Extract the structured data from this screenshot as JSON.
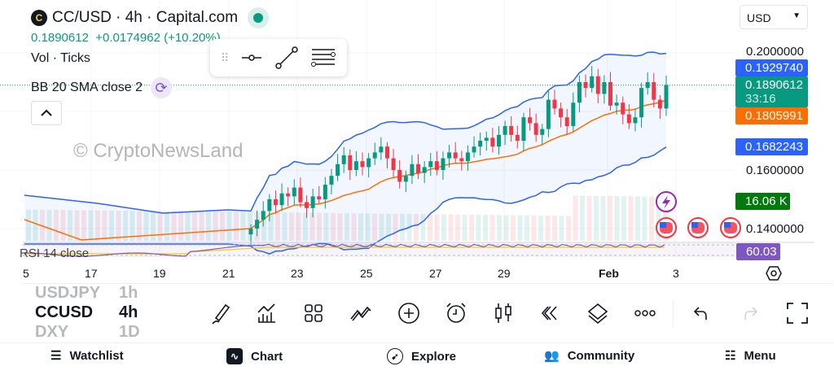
{
  "header": {
    "symbol": "CC/USD · 4h · Capital.com",
    "logo_letter": "C",
    "price": "0.1890612",
    "change": "+0.0174962 (+10.20%)"
  },
  "legend": {
    "vol": "Vol · Ticks",
    "bb": "BB 20 SMA close 2",
    "rsi": "RSI 14 close"
  },
  "currency": "USD",
  "price_axis": {
    "ticks": [
      "0.2000000",
      "0.1600000",
      "0.1400000"
    ],
    "tags": {
      "bb_upper": "0.1929740",
      "last": "0.1890612",
      "countdown": "33:16",
      "bb_basis": "0.1805991",
      "bb_lower": "0.1682243",
      "volume": "16.06 K",
      "rsi": "60.03"
    }
  },
  "time_axis": [
    "5",
    "17",
    "19",
    "21",
    "23",
    "25",
    "27",
    "29",
    "Feb",
    "3"
  ],
  "colors": {
    "up": "#089981",
    "down": "#f23645",
    "bb": "#2962ff",
    "basis": "#ff6d00",
    "rsi": "#7e57c2",
    "rsi_ma": "#f5d000"
  },
  "chart_data": {
    "type": "candlestick",
    "ylim": [
      0.135,
      0.205
    ],
    "closes": [
      0.14,
      0.143,
      0.146,
      0.15,
      0.148,
      0.152,
      0.151,
      0.154,
      0.149,
      0.147,
      0.151,
      0.15,
      0.155,
      0.158,
      0.162,
      0.165,
      0.16,
      0.163,
      0.161,
      0.164,
      0.166,
      0.168,
      0.164,
      0.16,
      0.156,
      0.158,
      0.162,
      0.159,
      0.161,
      0.163,
      0.16,
      0.164,
      0.166,
      0.164,
      0.163,
      0.166,
      0.168,
      0.17,
      0.171,
      0.168,
      0.172,
      0.175,
      0.172,
      0.17,
      0.178,
      0.176,
      0.172,
      0.174,
      0.184,
      0.181,
      0.178,
      0.175,
      0.183,
      0.19,
      0.188,
      0.192,
      0.186,
      0.19,
      0.182,
      0.183,
      0.179,
      0.176,
      0.178,
      0.188,
      0.19,
      0.184,
      0.181,
      0.189
    ]
  },
  "watchlist": [
    {
      "symbol": "USDJPY",
      "tf": "1h"
    },
    {
      "symbol": "CCUSD",
      "tf": "4h"
    },
    {
      "symbol": "DXY",
      "tf": "1D"
    }
  ],
  "nav": {
    "watchlist": "Watchlist",
    "chart": "Chart",
    "explore": "Explore",
    "community": "Community",
    "menu": "Menu"
  },
  "watermark": "© CryptoNewsLand"
}
